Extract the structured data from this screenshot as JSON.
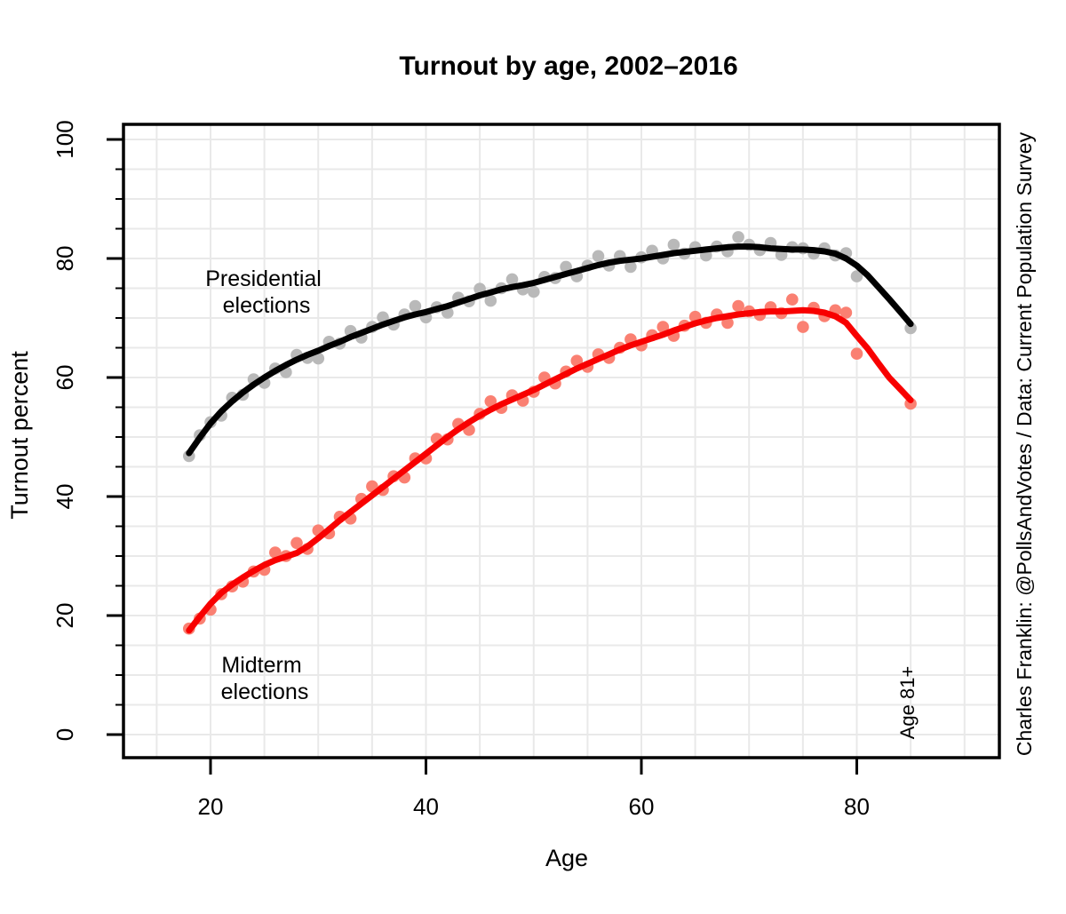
{
  "title": "Turnout by age, 2002–2016",
  "x_axis": {
    "label": "Age",
    "ticks": [
      20,
      40,
      60,
      80
    ],
    "range": [
      11.9,
      93.2
    ],
    "grid_step": 5
  },
  "y_axis": {
    "label": "Turnout percent",
    "ticks": [
      0,
      20,
      40,
      60,
      80,
      100
    ],
    "range": [
      -3.9,
      102.5
    ],
    "grid_step": 5,
    "minor_tick_step": 5
  },
  "annotations": {
    "presidential": {
      "line1": "Presidential",
      "line2": "elections",
      "color": "#000000"
    },
    "midterm": {
      "line1": "Midterm",
      "line2": "elections",
      "color": "#ff1200"
    },
    "age_note": {
      "text": "Age 81+",
      "color": "#b3b3b3"
    },
    "caption": {
      "text": "Charles Franklin: @PollsAndVotes / Data: Current Population Survey",
      "color": "#00008B"
    }
  },
  "colors": {
    "grid": "#e9e9e9",
    "box": "#000000",
    "presidential_line": "#000000",
    "presidential_points": "#b9b9b9",
    "midterm_line": "#f80000",
    "midterm_points": "#fa8072"
  },
  "chart_data": {
    "type": "scatter",
    "title": "Turnout by age, 2002–2016",
    "xlabel": "Age",
    "ylabel": "Turnout percent",
    "xlim": [
      11.9,
      93.2
    ],
    "ylim": [
      -3.9,
      102.5
    ],
    "grid": "on, light gray, every 5 units both axes",
    "legend_position": "inline text labels on plot",
    "smooth_ages": [
      18,
      19,
      20,
      21,
      22,
      23,
      24,
      25,
      26,
      27,
      28,
      29,
      30,
      31,
      32,
      33,
      34,
      35,
      36,
      37,
      38,
      39,
      40,
      41,
      42,
      43,
      44,
      45,
      46,
      47,
      48,
      49,
      50,
      51,
      52,
      53,
      54,
      55,
      56,
      57,
      58,
      59,
      60,
      61,
      62,
      63,
      64,
      65,
      66,
      67,
      68,
      69,
      70,
      71,
      72,
      73,
      74,
      75,
      76,
      77,
      78,
      79,
      80,
      81,
      82,
      83,
      84,
      85
    ],
    "dot_ages": [
      18,
      19,
      20,
      21,
      22,
      23,
      24,
      25,
      26,
      27,
      28,
      29,
      30,
      31,
      32,
      33,
      34,
      35,
      36,
      37,
      38,
      39,
      40,
      41,
      42,
      43,
      44,
      45,
      46,
      47,
      48,
      49,
      50,
      51,
      52,
      53,
      54,
      55,
      56,
      57,
      58,
      59,
      60,
      61,
      62,
      63,
      64,
      65,
      66,
      67,
      68,
      69,
      70,
      71,
      72,
      73,
      74,
      75,
      76,
      77,
      78,
      79,
      80,
      85
    ],
    "series": [
      {
        "name": "Presidential elections",
        "smooth": [
          47.3,
          49.9,
          52.3,
          54.3,
          56.0,
          57.5,
          58.8,
          60.0,
          61.1,
          62.1,
          63.0,
          63.8,
          64.5,
          65.3,
          66.0,
          66.8,
          67.5,
          68.2,
          68.9,
          69.5,
          70.1,
          70.6,
          71.0,
          71.5,
          72.0,
          72.6,
          73.2,
          73.8,
          74.3,
          74.8,
          75.2,
          75.5,
          75.9,
          76.4,
          76.9,
          77.4,
          77.9,
          78.4,
          78.9,
          79.3,
          79.6,
          79.8,
          80.0,
          80.3,
          80.6,
          80.9,
          81.1,
          81.3,
          81.5,
          81.7,
          81.9,
          82.0,
          82.0,
          81.9,
          81.7,
          81.6,
          81.5,
          81.5,
          81.4,
          81.2,
          80.8,
          80.0,
          78.8,
          77.2,
          75.2,
          73.2,
          71.1,
          69.0
        ],
        "dots": [
          46.8,
          50.3,
          52.5,
          53.6,
          56.6,
          57.1,
          59.7,
          59.1,
          61.5,
          60.9,
          63.8,
          63.3,
          63.2,
          66.0,
          65.7,
          67.8,
          66.7,
          68.5,
          70.1,
          68.9,
          70.6,
          72.0,
          70.1,
          71.8,
          70.9,
          73.4,
          72.8,
          74.9,
          72.9,
          75.0,
          76.5,
          74.8,
          74.4,
          76.9,
          76.7,
          78.6,
          77.0,
          78.8,
          80.4,
          78.8,
          80.4,
          78.6,
          80.2,
          81.3,
          80.0,
          82.3,
          80.8,
          81.9,
          80.5,
          82.0,
          81.2,
          83.6,
          82.3,
          81.4,
          82.6,
          80.6,
          81.9,
          81.7,
          80.8,
          81.7,
          80.5,
          80.9,
          77.0,
          68.3
        ]
      },
      {
        "name": "Midterm elections",
        "smooth": [
          17.5,
          19.8,
          22.0,
          23.8,
          25.2,
          26.4,
          27.5,
          28.5,
          29.3,
          29.9,
          30.5,
          31.6,
          33.0,
          34.5,
          36.0,
          37.4,
          38.8,
          40.2,
          41.6,
          43.0,
          44.4,
          45.8,
          47.2,
          48.6,
          50.0,
          51.3,
          52.5,
          53.6,
          54.6,
          55.5,
          56.3,
          57.1,
          57.9,
          58.8,
          59.7,
          60.6,
          61.5,
          62.3,
          63.1,
          63.9,
          64.7,
          65.4,
          66.0,
          66.6,
          67.2,
          67.9,
          68.5,
          69.1,
          69.6,
          70.0,
          70.3,
          70.6,
          70.8,
          71.0,
          71.1,
          71.1,
          71.2,
          71.3,
          71.2,
          70.9,
          70.3,
          69.2,
          67.0,
          64.9,
          62.4,
          60.0,
          58.1,
          56.2
        ],
        "dots": [
          17.8,
          19.5,
          21.0,
          23.6,
          24.9,
          25.7,
          27.4,
          27.7,
          30.6,
          30.0,
          32.2,
          31.2,
          34.3,
          33.8,
          36.6,
          36.3,
          39.6,
          41.7,
          41.1,
          43.4,
          43.2,
          46.4,
          46.4,
          49.7,
          49.6,
          52.2,
          51.2,
          53.9,
          56.0,
          54.9,
          57.0,
          56.1,
          57.6,
          60.0,
          59.0,
          61.0,
          62.8,
          61.8,
          63.9,
          63.3,
          65.0,
          66.4,
          65.4,
          67.1,
          68.5,
          67.0,
          68.7,
          70.2,
          69.2,
          70.6,
          69.2,
          72.0,
          71.1,
          70.5,
          71.8,
          70.8,
          73.1,
          68.5,
          71.7,
          70.3,
          71.3,
          70.9,
          64.0,
          55.6
        ]
      }
    ]
  }
}
